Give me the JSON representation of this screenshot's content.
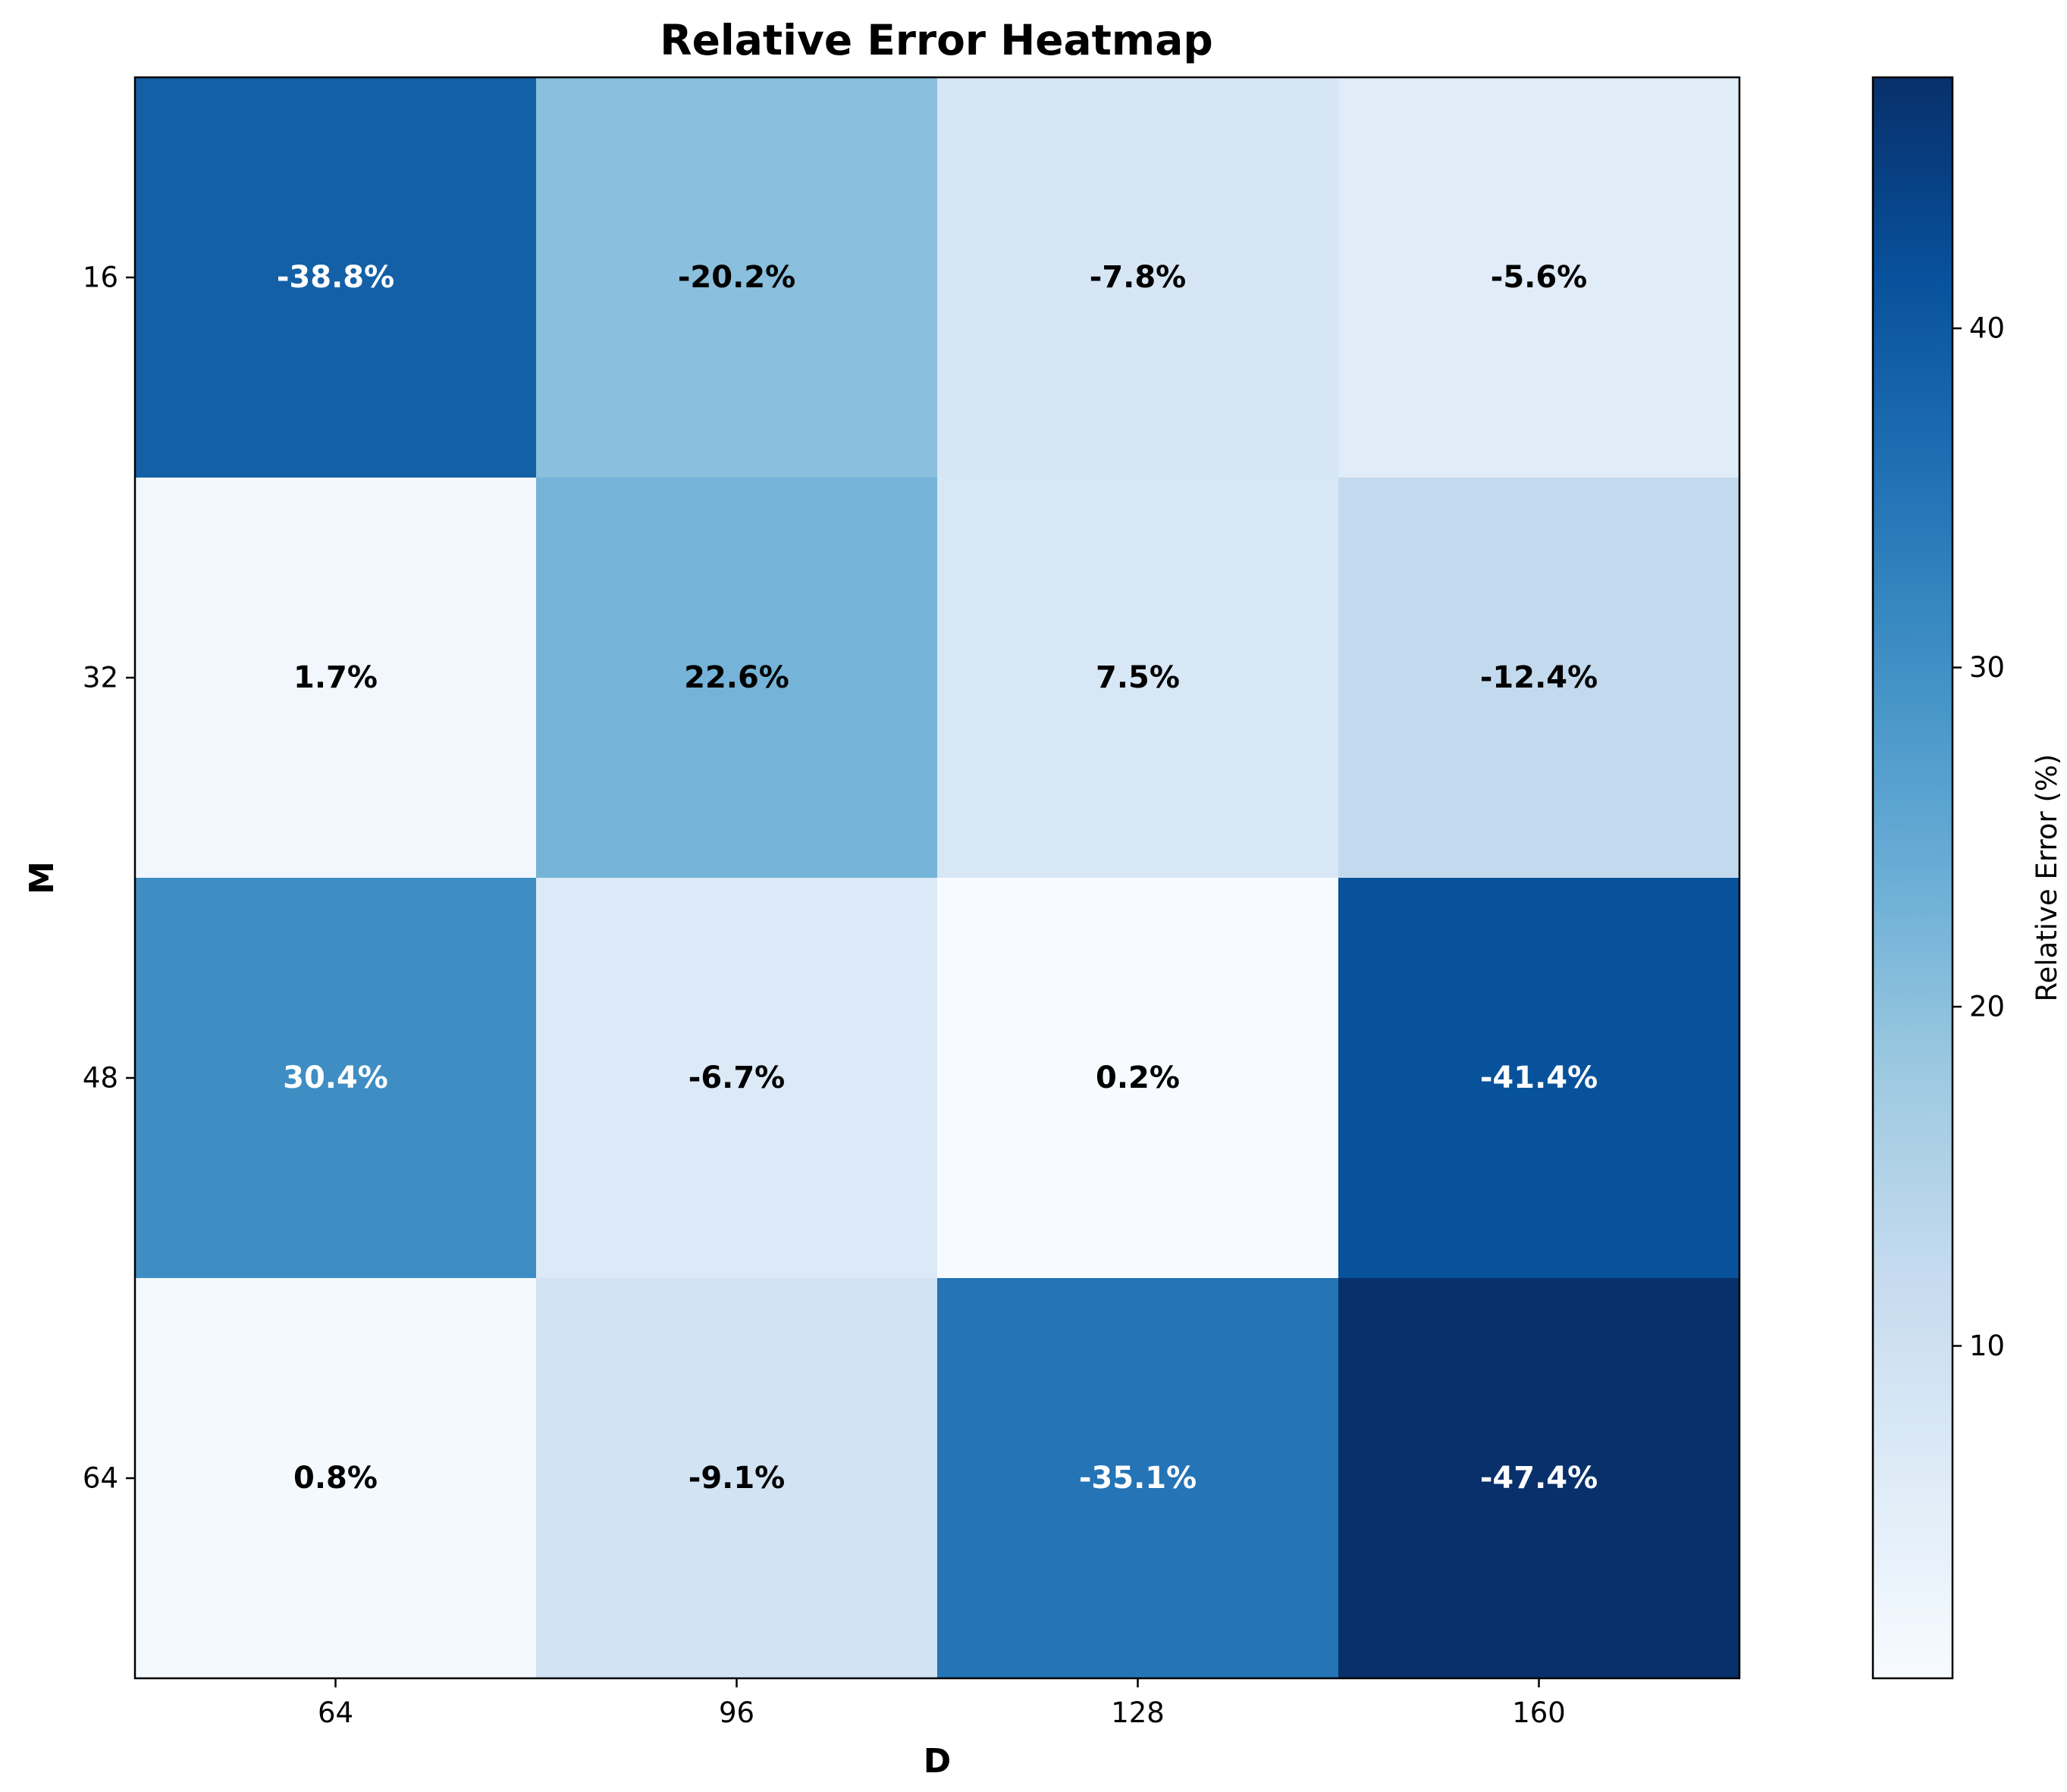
{
  "chart_data": {
    "type": "heatmap",
    "title": "Relative Error Heatmap",
    "xlabel": "D",
    "ylabel": "M",
    "x_categories": [
      "64",
      "96",
      "128",
      "160"
    ],
    "y_categories": [
      "16",
      "32",
      "48",
      "64"
    ],
    "values": [
      [
        -38.8,
        -20.2,
        -7.8,
        -5.6
      ],
      [
        1.7,
        22.6,
        7.5,
        -12.4
      ],
      [
        30.4,
        -6.7,
        0.2,
        -41.4
      ],
      [
        0.8,
        -9.1,
        -35.1,
        -47.4
      ]
    ],
    "cell_labels": [
      [
        "-38.8%",
        "-20.2%",
        "-7.8%",
        "-5.6%"
      ],
      [
        "1.7%",
        "22.6%",
        "7.5%",
        "-12.4%"
      ],
      [
        "30.4%",
        "-6.7%",
        "0.2%",
        "-41.4%"
      ],
      [
        "0.8%",
        "-9.1%",
        "-35.1%",
        "-47.4%"
      ]
    ],
    "color_by": "absolute value",
    "colormap": "Blues",
    "colorbar": {
      "label": "Relative Error (%)",
      "range": [
        0.2,
        47.4
      ],
      "ticks": [
        10,
        20,
        30,
        40
      ],
      "tick_labels": [
        "10",
        "20",
        "30",
        "40"
      ]
    },
    "text_colors": {
      "dark_cell": "#ffffff",
      "light_cell": "#000000"
    }
  }
}
